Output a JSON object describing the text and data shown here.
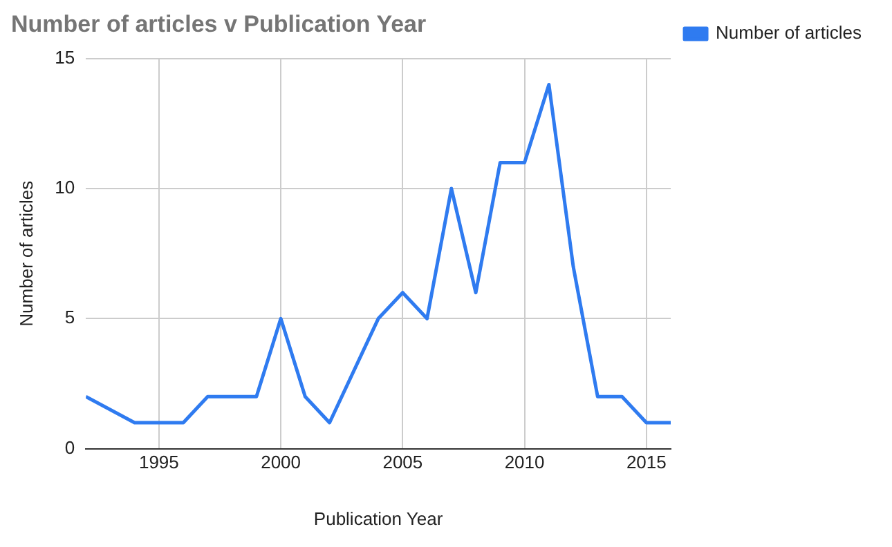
{
  "chart_data": {
    "type": "line",
    "title": "Number of articles v Publication Year",
    "xlabel": "Publication Year",
    "ylabel": "Number of articles",
    "x": [
      1992,
      1994,
      1995,
      1996,
      1997,
      1998,
      1999,
      2000,
      2001,
      2002,
      2004,
      2005,
      2006,
      2007,
      2008,
      2009,
      2010,
      2011,
      2012,
      2013,
      2014,
      2015,
      2016
    ],
    "series": [
      {
        "name": "Number of articles",
        "color": "#2f7bf0",
        "values": [
          2,
          1,
          1,
          1,
          2,
          2,
          2,
          5,
          2,
          1,
          5,
          6,
          5,
          10,
          6,
          11,
          11,
          14,
          7,
          2,
          2,
          1,
          1
        ]
      }
    ],
    "xlim": [
      1992,
      2016
    ],
    "xticks": [
      1995,
      2000,
      2005,
      2010,
      2015
    ],
    "ylim": [
      0,
      15
    ],
    "yticks": [
      0,
      5,
      10,
      15
    ],
    "grid": true,
    "legend": "top right",
    "marker": "none",
    "line_style": "solid"
  }
}
